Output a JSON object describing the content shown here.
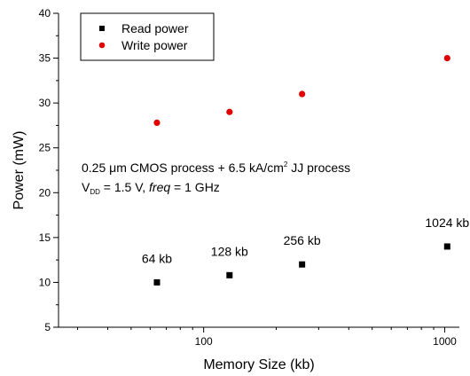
{
  "chart_data": {
    "type": "scatter",
    "x_scale": "log",
    "xlabel": "Memory Size (kb)",
    "ylabel": "Power (mW)",
    "xlim": [
      25,
      1150
    ],
    "ylim": [
      5,
      40
    ],
    "x_ticks": [
      100,
      1000
    ],
    "x_tick_labels": [
      "100",
      "1000"
    ],
    "y_ticks": [
      5,
      10,
      15,
      20,
      25,
      30,
      35,
      40
    ],
    "y_tick_labels": [
      "5",
      "10",
      "15",
      "20",
      "25",
      "30",
      "35",
      "40"
    ],
    "series": [
      {
        "name": "Read power",
        "marker": "square",
        "color": "#000000",
        "points": [
          {
            "x": 64,
            "y": 10.0
          },
          {
            "x": 128,
            "y": 10.8
          },
          {
            "x": 256,
            "y": 12.0
          },
          {
            "x": 1024,
            "y": 14.0
          }
        ]
      },
      {
        "name": "Write power",
        "marker": "circle",
        "color": "#e00000",
        "points": [
          {
            "x": 64,
            "y": 27.8
          },
          {
            "x": 128,
            "y": 29.0
          },
          {
            "x": 256,
            "y": 31.0
          },
          {
            "x": 1024,
            "y": 35.0
          }
        ]
      }
    ],
    "point_labels": [
      "64 kb",
      "128 kb",
      "256 kb",
      "1024 kb"
    ],
    "annotation": {
      "line1_a": "0.25 ",
      "line1_mu": "μ",
      "line1_b": "m CMOS process + 6.5 kA/cm",
      "line1_sup": "2",
      "line1_c": " JJ process",
      "line2_v": "V",
      "line2_sub": "DD",
      "line2_b": " = 1.5 V, ",
      "line2_freq": "freq",
      "line2_c": " = 1 GHz"
    },
    "legend_position": "top-left",
    "grid": false
  }
}
